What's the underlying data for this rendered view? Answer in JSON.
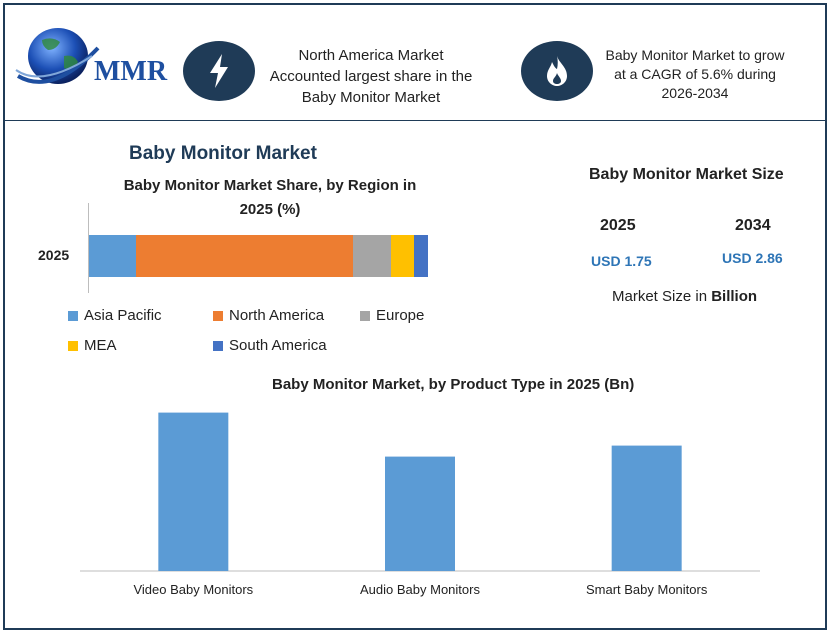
{
  "header": {
    "logo_text": "MMR",
    "highlight1": [
      "North America Market",
      "Accounted largest share in the",
      "Baby Monitor Market"
    ],
    "highlight2": [
      "Baby Monitor Market to grow",
      "at a CAGR of 5.6% during",
      "2026-2034"
    ]
  },
  "main_title": "Baby Monitor Market",
  "market_size": {
    "title": "Baby Monitor Market Size",
    "years": [
      "2025",
      "2034"
    ],
    "values": [
      "USD 1.75",
      "USD 2.86"
    ],
    "note_prefix": "Market Size in ",
    "note_bold": "Billion"
  },
  "colors": {
    "asia_pacific": "#5b9bd5",
    "north_america": "#ed7d31",
    "europe": "#a5a5a5",
    "mea": "#ffc000",
    "south_america": "#4472c4",
    "bar": "#5b9bd5",
    "navy": "#1f3b57"
  },
  "chart_data": [
    {
      "type": "bar",
      "orientation": "horizontal-stacked",
      "title": "Baby Monitor Market Share, by Region in 2025 (%)",
      "title_lines": [
        "Baby Monitor Market Share, by Region in",
        "2025 (%)"
      ],
      "categories": [
        "2025"
      ],
      "series": [
        {
          "name": "Asia Pacific",
          "values": [
            14
          ]
        },
        {
          "name": "North America",
          "values": [
            64
          ]
        },
        {
          "name": "Europe",
          "values": [
            11
          ]
        },
        {
          "name": "MEA",
          "values": [
            7
          ]
        },
        {
          "name": "South America",
          "values": [
            4
          ]
        }
      ],
      "legend_position": "bottom",
      "grid": false
    },
    {
      "type": "bar",
      "title": "Baby Monitor Market, by Product Type in 2025 (Bn)",
      "categories": [
        "Video Baby Monitors",
        "Audio Baby Monitors",
        "Smart Baby Monitors"
      ],
      "values": [
        0.72,
        0.52,
        0.57
      ],
      "ylim": [
        0,
        0.8
      ],
      "grid": false
    }
  ]
}
